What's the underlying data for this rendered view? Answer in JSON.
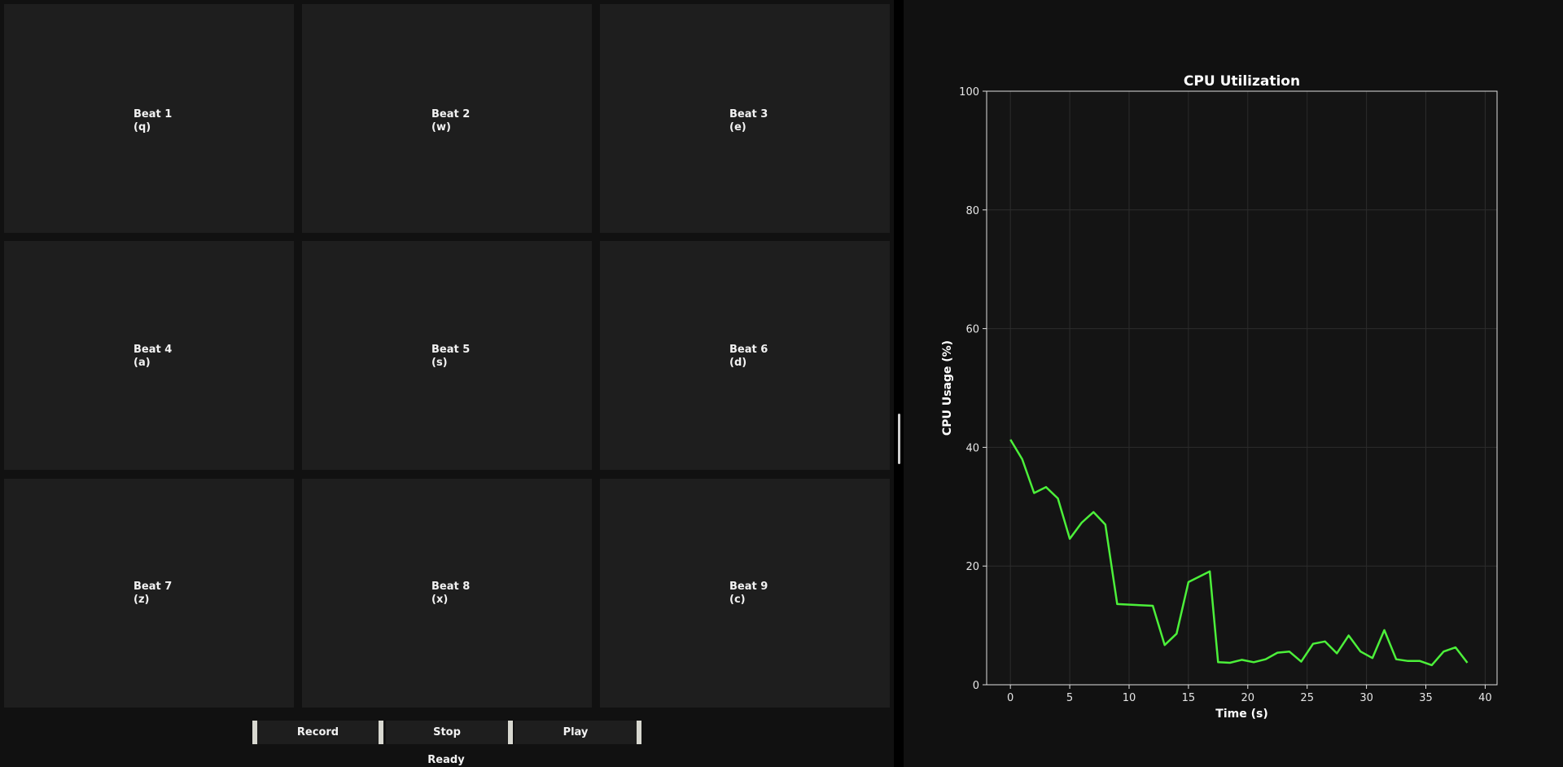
{
  "pads": [
    {
      "name": "Beat 1",
      "key": "(q)"
    },
    {
      "name": "Beat 2",
      "key": "(w)"
    },
    {
      "name": "Beat 3",
      "key": "(e)"
    },
    {
      "name": "Beat 4",
      "key": "(a)"
    },
    {
      "name": "Beat 5",
      "key": "(s)"
    },
    {
      "name": "Beat 6",
      "key": "(d)"
    },
    {
      "name": "Beat 7",
      "key": "(z)"
    },
    {
      "name": "Beat 8",
      "key": "(x)"
    },
    {
      "name": "Beat 9",
      "key": "(c)"
    }
  ],
  "controls": {
    "record_label": "Record",
    "stop_label": "Stop",
    "play_label": "Play"
  },
  "status": "Ready",
  "colors": {
    "pad": "#1e1e1e",
    "background": "#111111",
    "line": "#4cf03a"
  },
  "chart_data": {
    "type": "line",
    "title": "CPU Utilization",
    "xlabel": "Time (s)",
    "ylabel": "CPU Usage (%)",
    "xlim": [
      -2,
      41
    ],
    "ylim": [
      0,
      100
    ],
    "xticks": [
      0,
      5,
      10,
      15,
      20,
      25,
      30,
      35,
      40
    ],
    "yticks": [
      0,
      20,
      40,
      60,
      80,
      100
    ],
    "grid": true,
    "series": [
      {
        "x": [
          0,
          1,
          2,
          3,
          4,
          5,
          6,
          7,
          8,
          9,
          12,
          13,
          14,
          15,
          16.8,
          17.5,
          18.5,
          19.5,
          20.5,
          21.5,
          22.5,
          23.5,
          24.5,
          25.5,
          26.5,
          27.5,
          28.5,
          29.5,
          30.5,
          31.5,
          32.5,
          33.5,
          34.5,
          35.5,
          36.5,
          37.5,
          38.5
        ],
        "y": [
          41.3,
          38.0,
          32.3,
          33.3,
          31.4,
          24.6,
          27.3,
          29.1,
          27.0,
          13.6,
          13.3,
          6.7,
          8.6,
          17.3,
          19.1,
          3.8,
          3.7,
          4.2,
          3.8,
          4.3,
          5.4,
          5.6,
          3.9,
          6.9,
          7.3,
          5.3,
          8.3,
          5.6,
          4.5,
          9.2,
          4.3,
          4.0,
          4.0,
          3.3,
          5.6,
          6.3,
          3.7
        ]
      }
    ]
  }
}
